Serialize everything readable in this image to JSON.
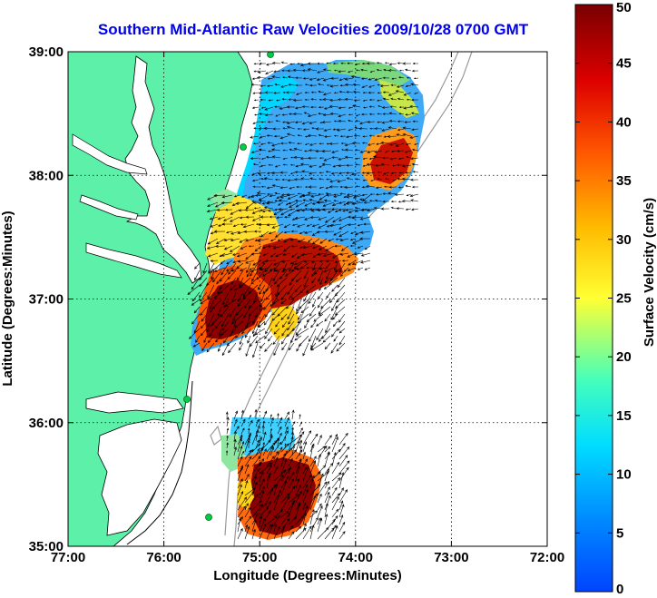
{
  "title": "Southern Mid-Atlantic Raw Velocities 2009/10/28 0700 GMT",
  "x_axis": {
    "label": "Longitude (Degrees:Minutes)",
    "ticks": [
      "77:00",
      "76:00",
      "75:00",
      "74:00",
      "73:00",
      "72:00"
    ],
    "range": [
      -77,
      -72
    ]
  },
  "y_axis": {
    "label": "Latitude (Degrees:Minutes)",
    "ticks": [
      "39:00",
      "38:00",
      "37:00",
      "36:00",
      "35:00"
    ],
    "range": [
      35,
      39
    ]
  },
  "colorbar": {
    "label": "Surface Velocity (cm/s)",
    "ticks": [
      "50",
      "45",
      "40",
      "35",
      "30",
      "25",
      "20",
      "15",
      "10",
      "5",
      "0"
    ],
    "range": [
      0,
      50
    ]
  },
  "colors": {
    "land": "#5cf0a8",
    "title": "#0000ee",
    "bathymetry": "#9a9a9a",
    "station": "#00cc44"
  },
  "grid": "dotted"
}
